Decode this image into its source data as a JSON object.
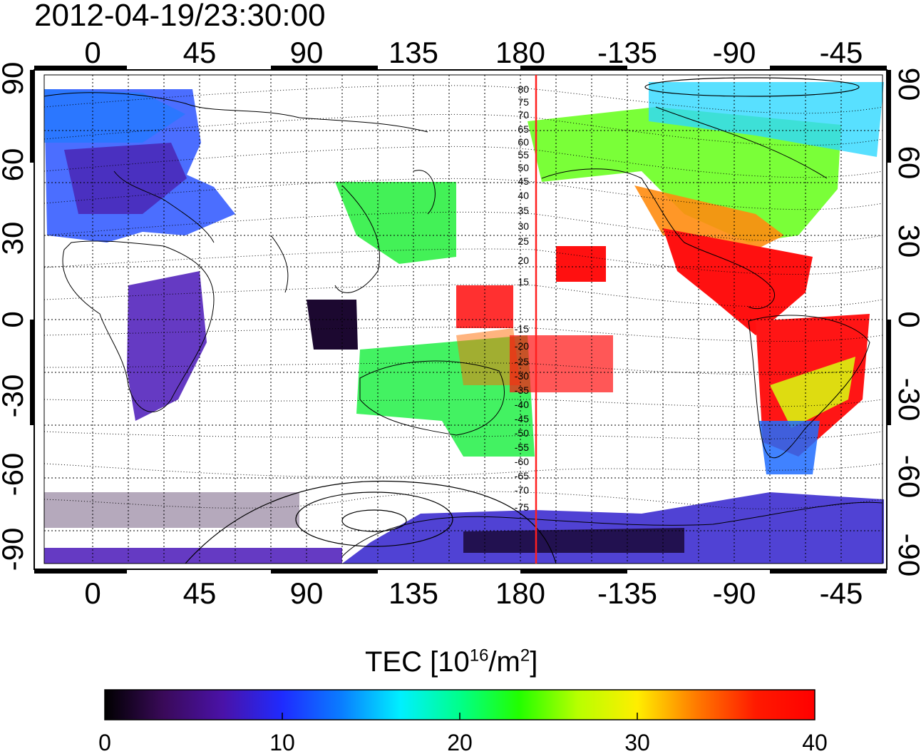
{
  "title": "2012-04-19/23:30:00",
  "map": {
    "lon_top_labels": [
      "0",
      "45",
      "90",
      "135",
      "180",
      "-135",
      "-90",
      "-45"
    ],
    "lon_bottom_labels": [
      "0",
      "45",
      "90",
      "135",
      "180",
      "-135",
      "-90",
      "-45"
    ],
    "lat_left_labels": [
      "90",
      "60",
      "30",
      "0",
      "-30",
      "-60",
      "-90"
    ],
    "lat_right_labels": [
      "90",
      "60",
      "30",
      "0",
      "-30",
      "-60",
      "-90"
    ],
    "magnetic_lat_labels_north": [
      "80",
      "75",
      "70",
      "65",
      "60",
      "55",
      "50",
      "45",
      "40",
      "35",
      "30",
      "25",
      "20",
      "15"
    ],
    "magnetic_lat_labels_south": [
      "-15",
      "-20",
      "-25",
      "-30",
      "-35",
      "-40",
      "-45",
      "-50",
      "-55",
      "-60",
      "-65",
      "-70",
      "-75"
    ],
    "terminator_color": "#ff2020",
    "background": "#ffffff"
  },
  "colorbar": {
    "label_main": "TEC  [10",
    "label_exp": "16",
    "label_mid": "/m",
    "label_exp2": "2",
    "label_end": "]",
    "ticks": [
      "0",
      "10",
      "20",
      "30",
      "40"
    ],
    "min": 0,
    "max": 40,
    "colors": [
      "#000000",
      "#3a0a5a",
      "#4a12a8",
      "#1f2bff",
      "#0a7dff",
      "#00f0ff",
      "#00ff8a",
      "#22ff00",
      "#b8ff00",
      "#ffee00",
      "#ff7a00",
      "#ff1a00",
      "#ff0000"
    ]
  }
}
